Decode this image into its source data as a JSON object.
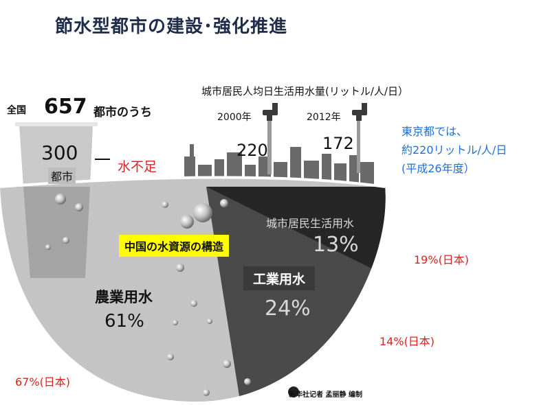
{
  "slide": {
    "title": "節水型都市の建設･強化推進"
  },
  "infographic": {
    "city_usage_heading": "城市居民人均日生活用水量(リットル/人/日）",
    "years": [
      {
        "year": "2000年",
        "value": "220"
      },
      {
        "year": "2012年",
        "value": "172"
      }
    ],
    "cities_total_label": "全国",
    "cities_total_value": "657",
    "cities_total_suffix": "都市のうち",
    "short_count": "300",
    "short_unit": "都市",
    "short_text": "水不足",
    "center_label": "中国の水資源の構造",
    "segments": [
      {
        "label": "農業用水",
        "pct": "61%"
      },
      {
        "label": "工業用水",
        "pct": "24%"
      },
      {
        "label": "城市居民生活用水",
        "pct": "13%"
      }
    ],
    "credit": "新华社记者 孟丽静 编制",
    "colors": {
      "light": "#c9c9c9",
      "mid": "#5a5a5a",
      "dark": "#2b2b2b",
      "red": "#e0201e",
      "blue": "#1f6fd6",
      "highlight": "#ffff00"
    }
  },
  "notes": {
    "tokyo_lines": [
      "東京都では、",
      "約220リットル/人/日",
      "(平成26年度）"
    ],
    "jp_city": "19%(日本)",
    "jp_ind": "14%(日本)",
    "jp_agri": "67%(日本)"
  }
}
